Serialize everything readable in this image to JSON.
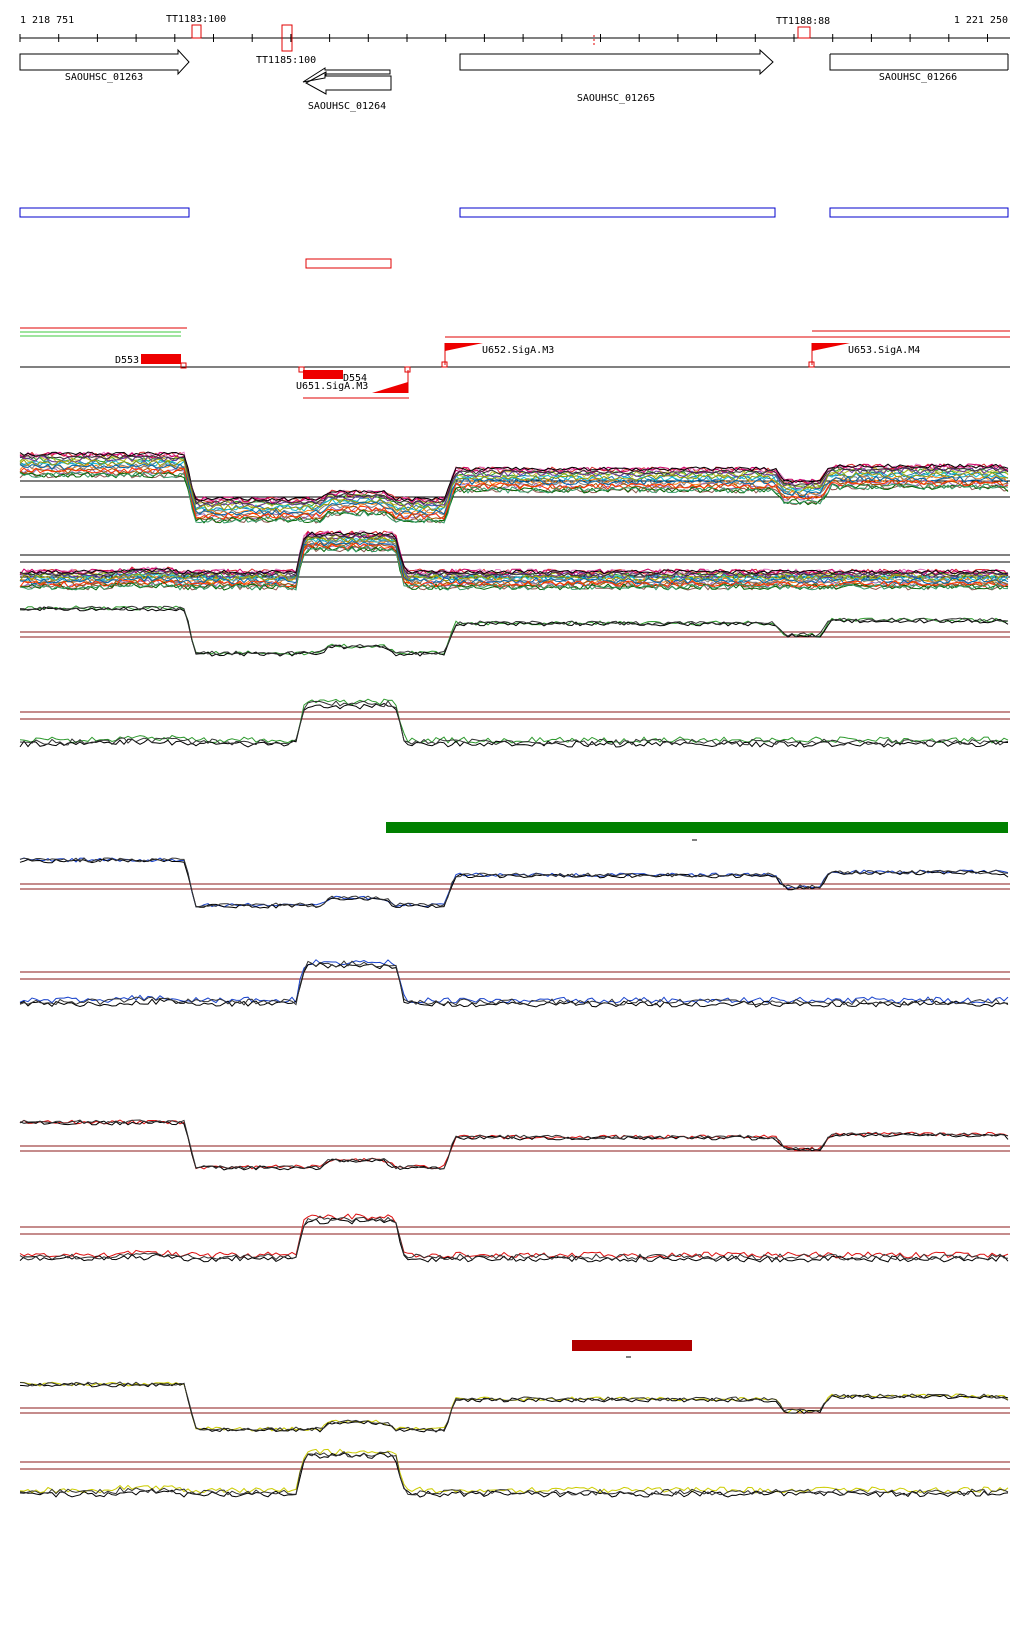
{
  "ruler": {
    "start_label": "1 218 751",
    "end_label": "1 221 250",
    "start_bp": 1218751,
    "end_bp": 1221250
  },
  "terminators": [
    {
      "label": "TT1183:100",
      "pos": 1219199
    },
    {
      "label": "TT1185:100",
      "pos": 1219439
    },
    {
      "label": "TT1188:88",
      "pos": 1220747
    }
  ],
  "genes": [
    {
      "name": "SAOUHSC_01263",
      "start": 1218751,
      "end": 1219180,
      "strand": "+"
    },
    {
      "name": "SAOUHSC_01264",
      "start": 1219490,
      "end": 1219711,
      "strand": "-"
    },
    {
      "name": "SAOUHSC_01265",
      "start": 1219862,
      "end": 1220664,
      "strand": "+"
    },
    {
      "name": "SAOUHSC_01266",
      "start": 1220805,
      "end": 1221250,
      "strand": "+"
    }
  ],
  "segments": [
    {
      "label": "D553"
    },
    {
      "label": "D554"
    },
    {
      "label": "U651.SigA.M3"
    },
    {
      "label": "U652.SigA.M3"
    },
    {
      "label": "U653.SigA.M4"
    }
  ],
  "colors": {
    "forward_gene_box": "#0000cc",
    "reverse_gene_box": "#e00000",
    "profile_line": "#8b1a1a",
    "green_block": "#008000",
    "red_block": "#b00000",
    "green_series": "#2e9a2e",
    "blue_series": "#1a44cc",
    "red_series": "#dd1111",
    "yellow_series": "#cccc00"
  }
}
